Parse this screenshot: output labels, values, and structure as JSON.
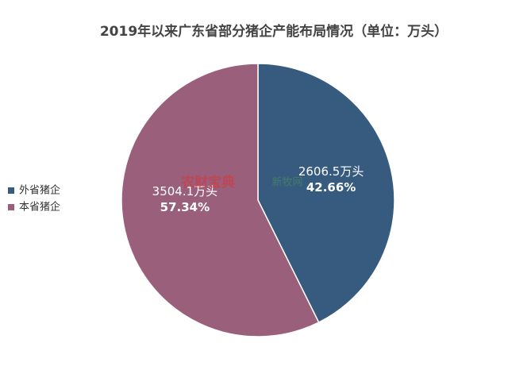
{
  "chart_data": {
    "type": "pie",
    "title": "2019年以来广东省部分猪企产能布局情况（单位：万头）",
    "categories": [
      "外省猪企",
      "本省猪企"
    ],
    "values": [
      2606.5,
      3504.1
    ],
    "value_labels": [
      "2606.5万头",
      "3504.1万头"
    ],
    "percents": [
      42.66,
      57.34
    ],
    "percent_labels": [
      "42.66%",
      "57.34%"
    ],
    "colors": [
      "#375a7f",
      "#9a5f7a"
    ],
    "legend": "left",
    "watermarks": [
      "农财宝典",
      "新牧网"
    ]
  }
}
